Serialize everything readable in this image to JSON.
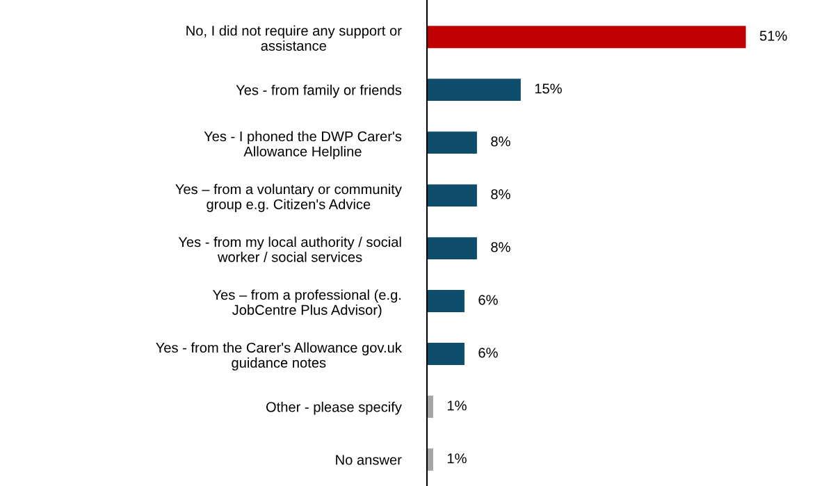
{
  "chart_data": {
    "type": "bar",
    "orientation": "horizontal",
    "categories": [
      "No, I did not require any support or\nassistance",
      "Yes - from family or friends",
      "Yes - I phoned the DWP Carer's\nAllowance Helpline",
      "Yes – from a voluntary or community\ngroup e.g. Citizen's Advice",
      "Yes - from my local authority / social\nworker / social services",
      "Yes – from a professional (e.g.\nJobCentre Plus Advisor)",
      "Yes - from the Carer's Allowance gov.uk\nguidance notes",
      "Other - please specify",
      "No answer"
    ],
    "values": [
      51,
      15,
      8,
      8,
      8,
      6,
      6,
      1,
      1
    ],
    "colors": [
      "#c00000",
      "#0e4d6b",
      "#0e4d6b",
      "#0e4d6b",
      "#0e4d6b",
      "#0e4d6b",
      "#0e4d6b",
      "#a6a6a6",
      "#a6a6a6"
    ],
    "value_labels": [
      "51%",
      "15%",
      "8%",
      "8%",
      "8%",
      "6%",
      "6%",
      "1%",
      "1%"
    ],
    "tick_labels": "y",
    "grid": false,
    "legend": false
  }
}
